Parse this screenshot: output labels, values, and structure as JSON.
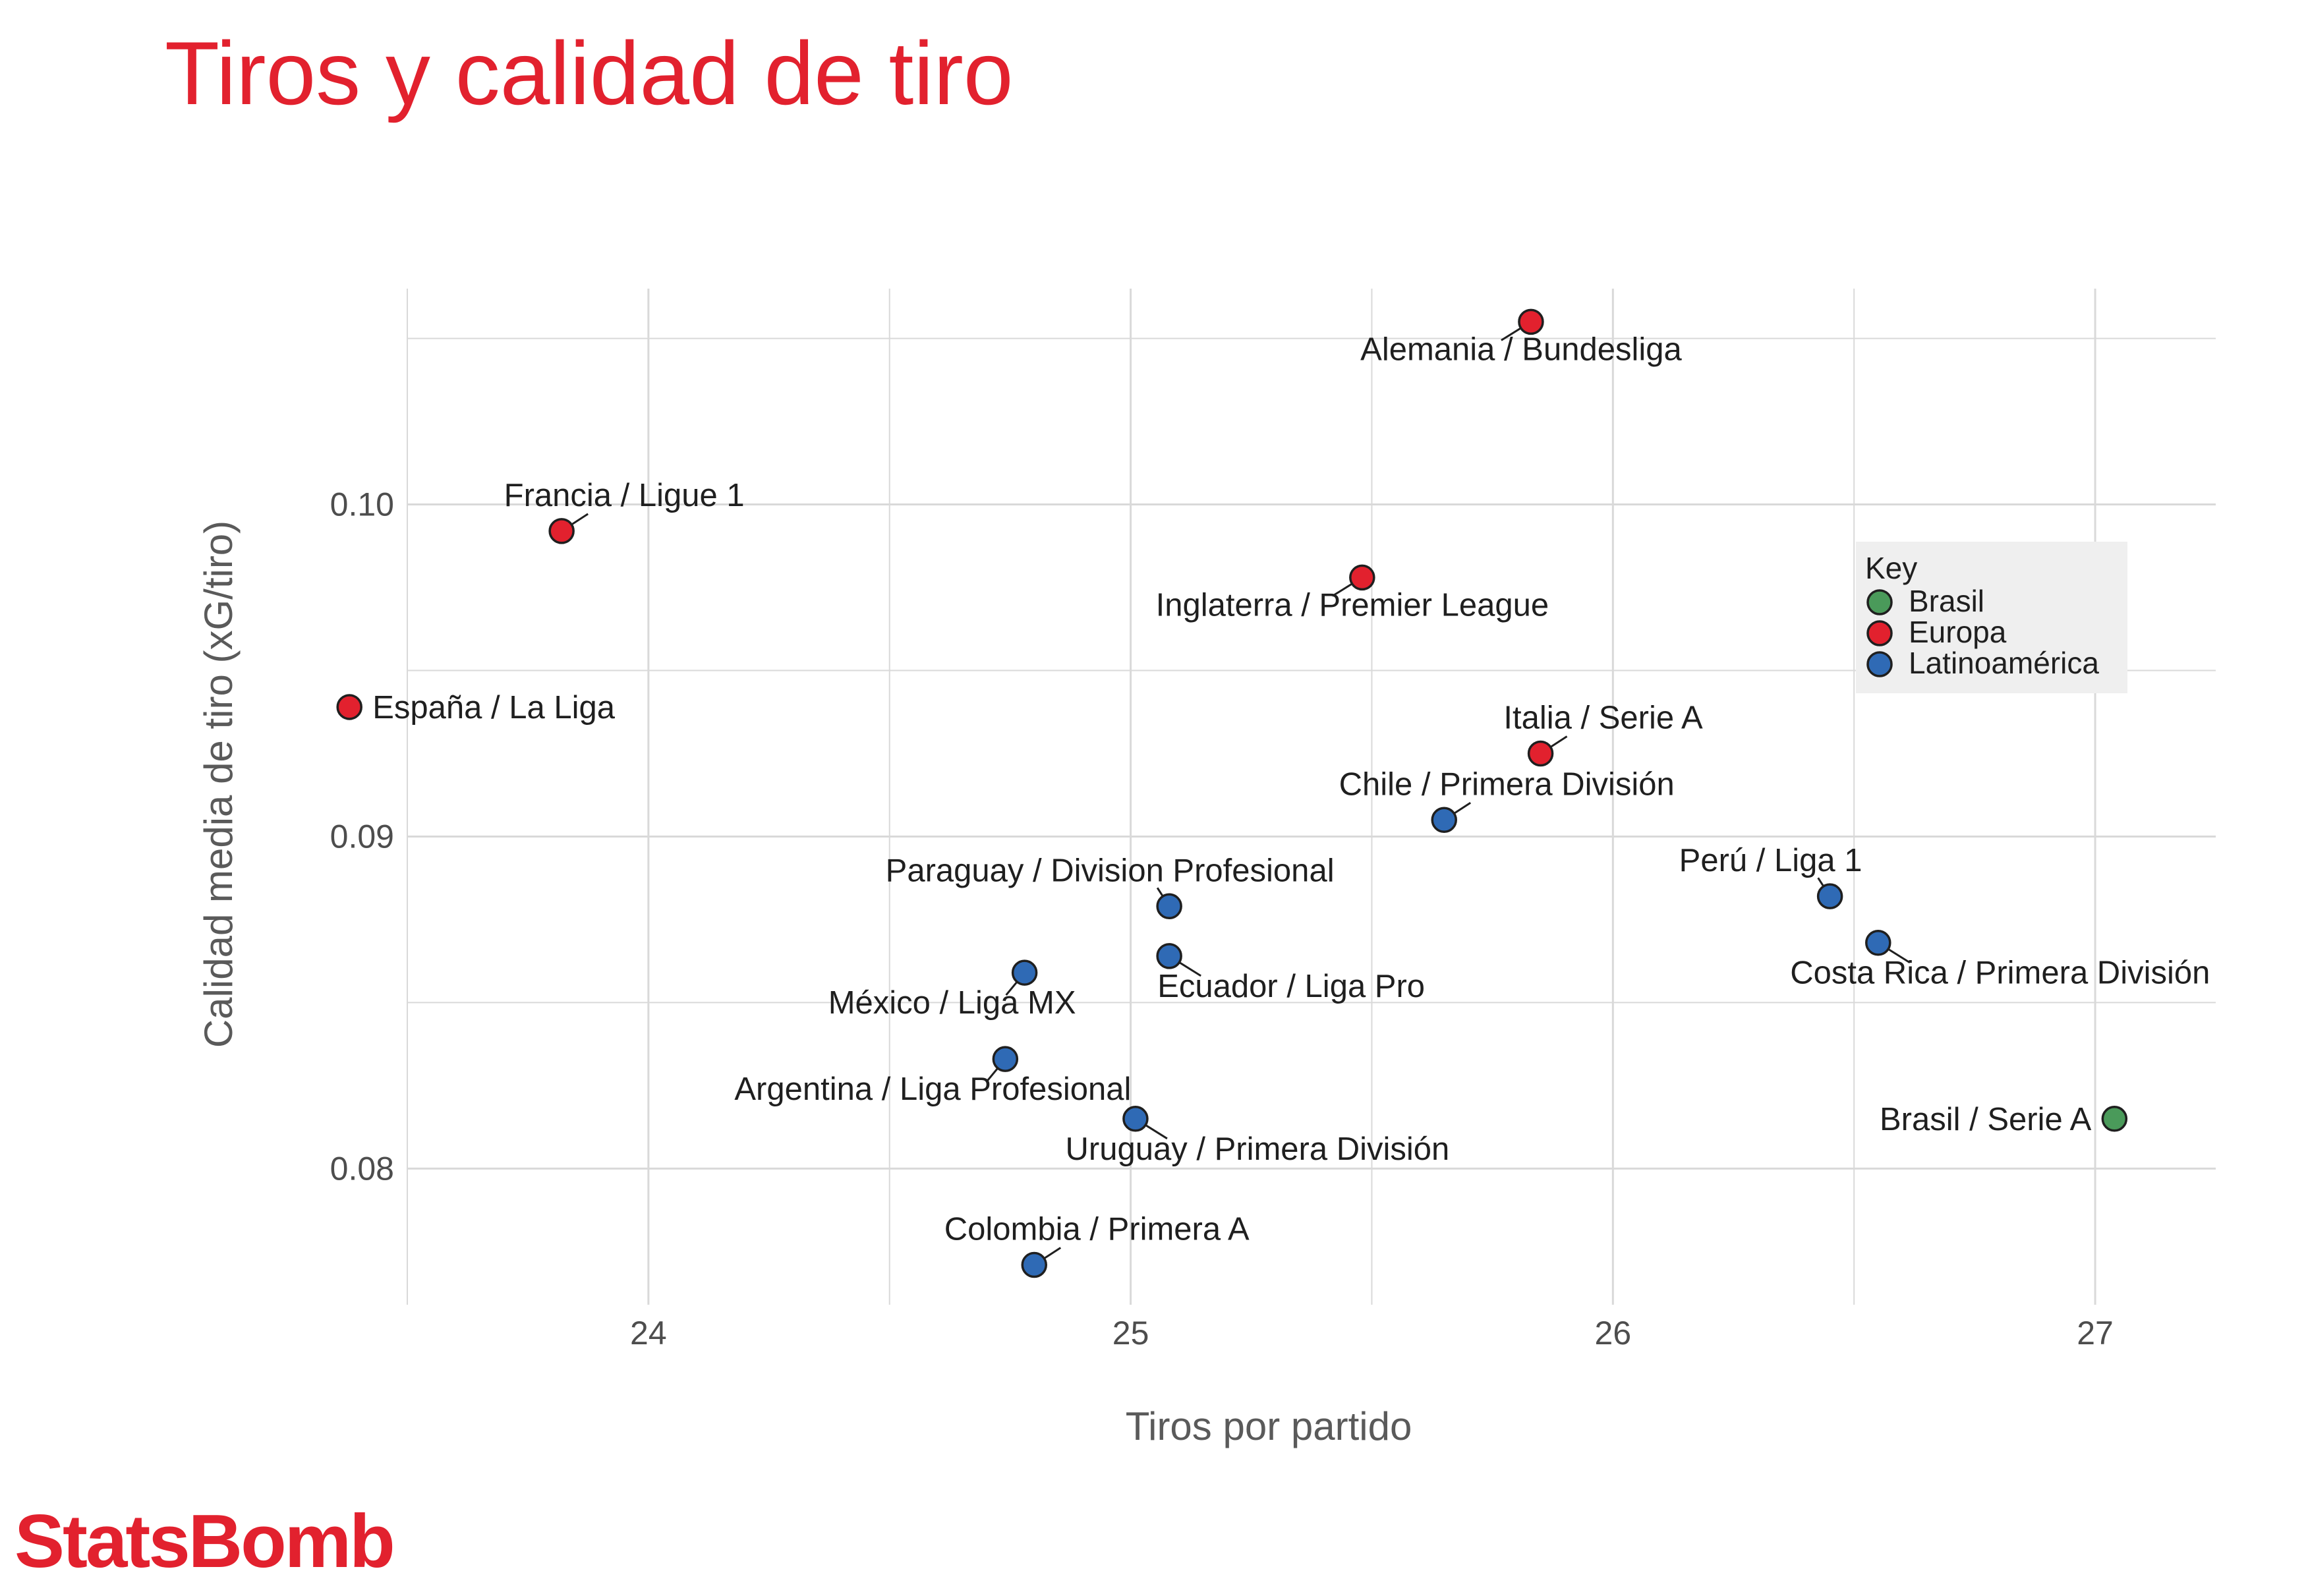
{
  "page": {
    "title": "Tiros y calidad de tiro",
    "brand": "StatsBomb"
  },
  "colors": {
    "title": "#e2212e",
    "Brasil": "#4a9a5a",
    "Europa": "#e2212e",
    "Latinoamérica": "#2f6ab5",
    "grid": "#d9d9d9"
  },
  "chart_data": {
    "type": "scatter",
    "xlabel": "Tiros por partido",
    "ylabel": "Calidad media de tiro (xG/tiro)",
    "xlim": [
      23.5,
      27.25
    ],
    "ylim": [
      0.0759,
      0.1065
    ],
    "xticks": [
      24,
      25,
      26,
      27
    ],
    "xtick_labels": [
      "24",
      "25",
      "26",
      "27"
    ],
    "yticks": [
      0.08,
      0.09,
      0.1
    ],
    "ytick_labels": [
      "0.08",
      "0.09",
      "0.10"
    ],
    "grid": true,
    "legend": {
      "title": "Key",
      "position": "right",
      "entries": [
        "Brasil",
        "Europa",
        "Latinoamérica"
      ]
    },
    "points": [
      {
        "label": "Alemania / Bundesliga",
        "group": "Europa",
        "x": 25.83,
        "y": 0.1055,
        "anchor": "below"
      },
      {
        "label": "Francia / Ligue 1",
        "group": "Europa",
        "x": 23.82,
        "y": 0.0992,
        "anchor": "above-right"
      },
      {
        "label": "Inglaterra / Premier League",
        "group": "Europa",
        "x": 25.48,
        "y": 0.0978,
        "anchor": "below"
      },
      {
        "label": "España / La Liga",
        "group": "Europa",
        "x": 23.38,
        "y": 0.0939,
        "anchor": "right"
      },
      {
        "label": "Italia / Serie A",
        "group": "Europa",
        "x": 25.85,
        "y": 0.0925,
        "anchor": "above-right"
      },
      {
        "label": "Chile / Primera División",
        "group": "Latinoamérica",
        "x": 25.65,
        "y": 0.0905,
        "anchor": "above-right"
      },
      {
        "label": "Paraguay / Division Profesional",
        "group": "Latinoamérica",
        "x": 25.08,
        "y": 0.0879,
        "anchor": "above-left"
      },
      {
        "label": "Perú / Liga 1",
        "group": "Latinoamérica",
        "x": 26.45,
        "y": 0.0882,
        "anchor": "above-left"
      },
      {
        "label": "Costa Rica / Primera División",
        "group": "Latinoamérica",
        "x": 26.55,
        "y": 0.0868,
        "anchor": "below-right"
      },
      {
        "label": "Ecuador / Liga Pro",
        "group": "Latinoamérica",
        "x": 25.08,
        "y": 0.0864,
        "anchor": "below-right"
      },
      {
        "label": "México / Liga MX",
        "group": "Latinoamérica",
        "x": 24.78,
        "y": 0.0859,
        "anchor": "below-left"
      },
      {
        "label": "Argentina / Liga Profesional",
        "group": "Latinoamérica",
        "x": 24.74,
        "y": 0.0833,
        "anchor": "below-left"
      },
      {
        "label": "Uruguay / Primera División",
        "group": "Latinoamérica",
        "x": 25.01,
        "y": 0.0815,
        "anchor": "below-right"
      },
      {
        "label": "Brasil / Serie A",
        "group": "Brasil",
        "x": 27.04,
        "y": 0.0815,
        "anchor": "left"
      },
      {
        "label": "Colombia / Primera A",
        "group": "Latinoamérica",
        "x": 24.8,
        "y": 0.0771,
        "anchor": "above-right"
      }
    ]
  }
}
